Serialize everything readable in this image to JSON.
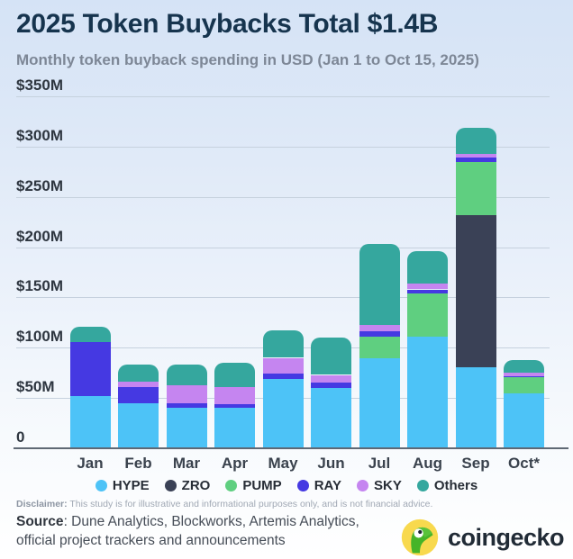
{
  "header": {
    "title": "2025 Token Buybacks Total $1.4B",
    "subtitle": "Monthly token buyback spending in USD (Jan 1 to Oct 15, 2025)"
  },
  "chart_data": {
    "type": "bar",
    "stacked": true,
    "unit": "USD millions",
    "title": "2025 Token Buybacks Total $1.4B",
    "categories": [
      "Jan",
      "Feb",
      "Mar",
      "Apr",
      "May",
      "Jun",
      "Jul",
      "Aug",
      "Sep",
      "Oct*"
    ],
    "series": [
      {
        "name": "HYPE",
        "color": "#4dc3f7",
        "values": [
          52,
          45,
          40,
          40,
          69,
          60,
          90,
          111,
          81,
          55
        ]
      },
      {
        "name": "ZRO",
        "color": "#3a4156",
        "values": [
          0,
          0,
          0,
          0,
          0,
          0,
          0,
          0,
          151,
          0
        ]
      },
      {
        "name": "PUMP",
        "color": "#5fcf80",
        "values": [
          0,
          0,
          0,
          0,
          0,
          0,
          21,
          43,
          53,
          16
        ]
      },
      {
        "name": "RAY",
        "color": "#4539e2",
        "values": [
          54,
          16,
          5,
          4,
          5,
          5,
          5,
          4,
          4,
          1
        ]
      },
      {
        "name": "SKY",
        "color": "#c585f0",
        "values": [
          0,
          5,
          18,
          17,
          16,
          8,
          7,
          6,
          4,
          3
        ]
      },
      {
        "name": "Others",
        "color": "#35a79e",
        "values": [
          15,
          17,
          20,
          24,
          27,
          37,
          80,
          32,
          26,
          13
        ]
      }
    ],
    "monthly_totals": [
      121,
      83,
      83,
      85,
      117,
      110,
      203,
      196,
      319,
      88
    ],
    "y_ticks": [
      {
        "label": "$350M",
        "value": 350
      },
      {
        "label": "$300M",
        "value": 300
      },
      {
        "label": "$250M",
        "value": 250
      },
      {
        "label": "$200M",
        "value": 200
      },
      {
        "label": "$150M",
        "value": 150
      },
      {
        "label": "$100M",
        "value": 100
      },
      {
        "label": "$50M",
        "value": 50
      },
      {
        "label": "0",
        "value": 0
      }
    ],
    "ylim": [
      0,
      350
    ],
    "grid": true,
    "legend_position": "bottom"
  },
  "footer": {
    "disclaimer_label": "Disclaimer:",
    "disclaimer_text": " This study is for illustrative and informational purposes only, and is not financial advice.",
    "source_label": "Source",
    "source_rest": ": Dune Analytics, Blockworks, Artemis Analytics,",
    "source_line2": "official project trackers and announcements",
    "logo_text": "coingecko"
  },
  "colors": {
    "background_top": "#d5e3f6",
    "background_bottom": "#ffffff",
    "title": "#16344e",
    "subtitle": "#7d8796",
    "gridline": "#c6d1de",
    "axis": "#5f6874",
    "logo_circle": "#f8d94e",
    "logo_gecko": "#46b428"
  }
}
